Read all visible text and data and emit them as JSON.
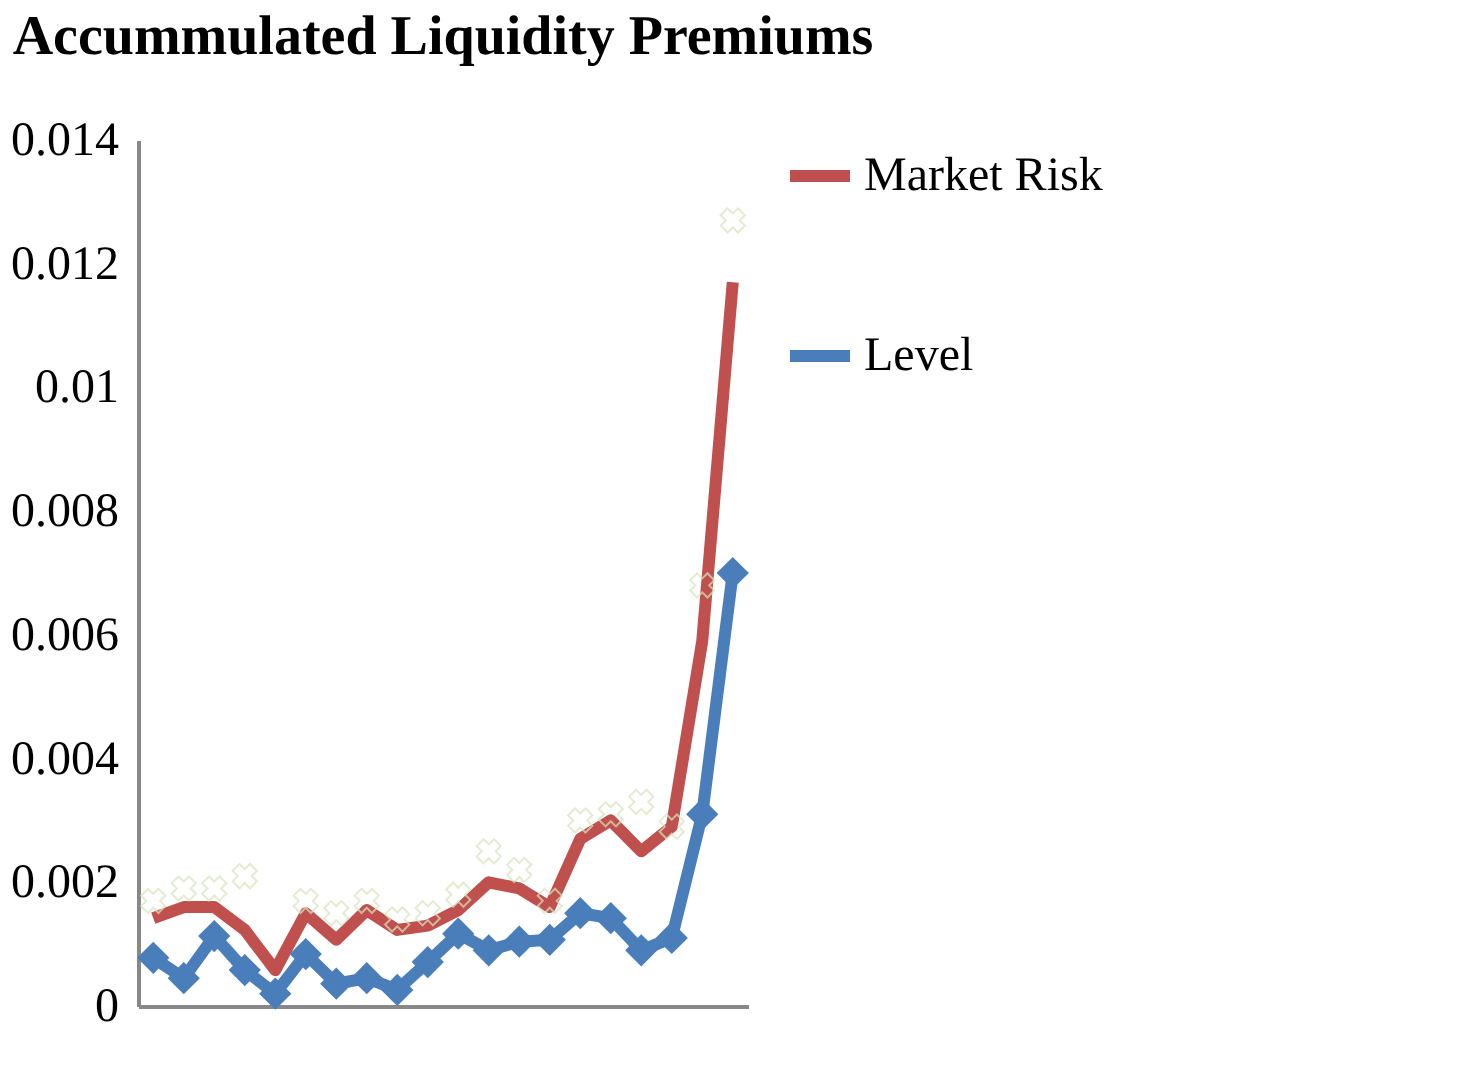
{
  "chart_data": {
    "type": "line",
    "title": "Accummulated Liquidity Premiums",
    "categories": [
      null,
      null,
      null,
      null,
      null,
      null,
      null,
      null,
      null,
      null,
      null,
      null,
      null,
      null,
      null,
      null,
      null,
      null,
      null,
      null
    ],
    "series": [
      {
        "name": "Market Risk",
        "color": "#c0504d",
        "marker": "none",
        "values": [
          0.00142,
          0.0016,
          0.0016,
          0.00123,
          0.00058,
          0.0015,
          0.00107,
          0.00155,
          0.00123,
          0.0013,
          0.00155,
          0.002,
          0.0019,
          0.0016,
          0.0027,
          0.003,
          0.0025,
          0.0029,
          0.0059,
          0.0117
        ]
      },
      {
        "name": "Level",
        "color": "#4a7ebb",
        "marker": "diamond",
        "values": [
          0.00078,
          0.00045,
          0.00113,
          0.00058,
          0.0002,
          0.00084,
          0.00036,
          0.00045,
          0.00026,
          0.00071,
          0.00117,
          0.0009,
          0.00104,
          0.00107,
          0.0015,
          0.00142,
          0.0009,
          0.0011,
          0.0031,
          0.007
        ]
      },
      {
        "type": "scatter",
        "color": "#d7e4bd",
        "marker": "cross",
        "values": [
          0.0017,
          0.0019,
          0.0019,
          0.0021,
          null,
          0.0017,
          0.0015,
          0.0017,
          0.0014,
          0.0015,
          0.0018,
          0.0025,
          0.0022,
          0.0017,
          0.003,
          0.0031,
          0.0033,
          0.0029,
          0.0068,
          0.0127
        ]
      }
    ],
    "ylim": [
      0,
      0.014
    ],
    "yticks": [
      0,
      0.002,
      0.004,
      0.006,
      0.008,
      0.01,
      0.012,
      0.014
    ],
    "grid": false,
    "legend": "right",
    "tick_labels": "y"
  }
}
